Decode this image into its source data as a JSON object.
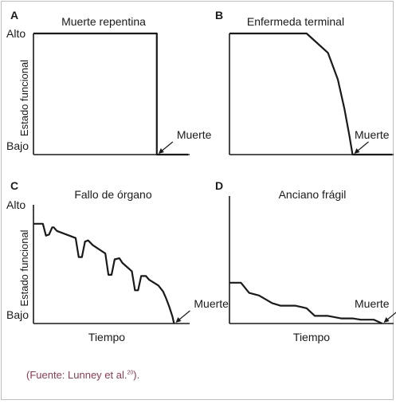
{
  "chart_data": [
    {
      "panel": "A",
      "type": "line",
      "title": "Muerte repentina",
      "ylabel": "Estado funcional",
      "ytick_labels": [
        "Alto",
        "Bajo"
      ],
      "xlabel": "",
      "x": [
        0,
        0.79,
        0.79,
        0.99
      ],
      "series": [
        {
          "values": [
            1,
            1,
            0,
            0
          ]
        }
      ],
      "ylim": [
        0,
        1
      ],
      "annotation": "Muerte",
      "annotation_x": 0.79
    },
    {
      "panel": "B",
      "type": "line",
      "title": "Enfermeda terminal",
      "ylabel": "",
      "ytick_labels": [],
      "xlabel": "",
      "x": [
        0,
        0.47,
        0.6,
        0.66,
        0.7,
        0.73,
        0.75,
        0.99
      ],
      "series": [
        {
          "values": [
            1,
            1,
            0.84,
            0.62,
            0.38,
            0.16,
            0,
            0
          ]
        }
      ],
      "ylim": [
        0,
        1
      ],
      "annotation": "Muerte",
      "annotation_x": 0.75
    },
    {
      "panel": "C",
      "type": "line",
      "title": "Fallo de órgano",
      "ylabel": "Estado funcional",
      "ytick_labels": [
        "Alto",
        "Bajo"
      ],
      "xlabel": "Tiempo",
      "x": [
        0,
        0.06,
        0.08,
        0.1,
        0.12,
        0.13,
        0.15,
        0.27,
        0.29,
        0.31,
        0.33,
        0.35,
        0.38,
        0.46,
        0.48,
        0.5,
        0.52,
        0.55,
        0.57,
        0.63,
        0.65,
        0.67,
        0.69,
        0.72,
        0.74,
        0.8,
        0.83,
        0.85,
        0.87,
        0.89,
        0.9
      ],
      "series": [
        {
          "values": [
            0.84,
            0.84,
            0.74,
            0.75,
            0.81,
            0.81,
            0.78,
            0.72,
            0.56,
            0.56,
            0.69,
            0.7,
            0.66,
            0.59,
            0.41,
            0.41,
            0.54,
            0.55,
            0.51,
            0.44,
            0.28,
            0.28,
            0.4,
            0.4,
            0.37,
            0.32,
            0.27,
            0.21,
            0.14,
            0.06,
            0
          ]
        }
      ],
      "ylim": [
        0,
        1
      ],
      "annotation": "Muerte",
      "annotation_x": 0.9
    },
    {
      "panel": "D",
      "type": "line",
      "title": "Anciano frágil",
      "ylabel": "",
      "ytick_labels": [],
      "xlabel": "Tiempo",
      "x": [
        0,
        0.07,
        0.12,
        0.18,
        0.26,
        0.31,
        0.4,
        0.47,
        0.52,
        0.6,
        0.68,
        0.75,
        0.8,
        0.88,
        0.93
      ],
      "series": [
        {
          "values": [
            0.32,
            0.32,
            0.24,
            0.22,
            0.16,
            0.14,
            0.14,
            0.12,
            0.06,
            0.06,
            0.04,
            0.04,
            0.03,
            0.03,
            0
          ]
        }
      ],
      "ylim": [
        0,
        1
      ],
      "annotation": "Muerte",
      "annotation_x": 0.93
    }
  ],
  "caption": {
    "text": "(Fuente: Lunney et al.",
    "superscript": "20",
    "suffix": ")."
  }
}
